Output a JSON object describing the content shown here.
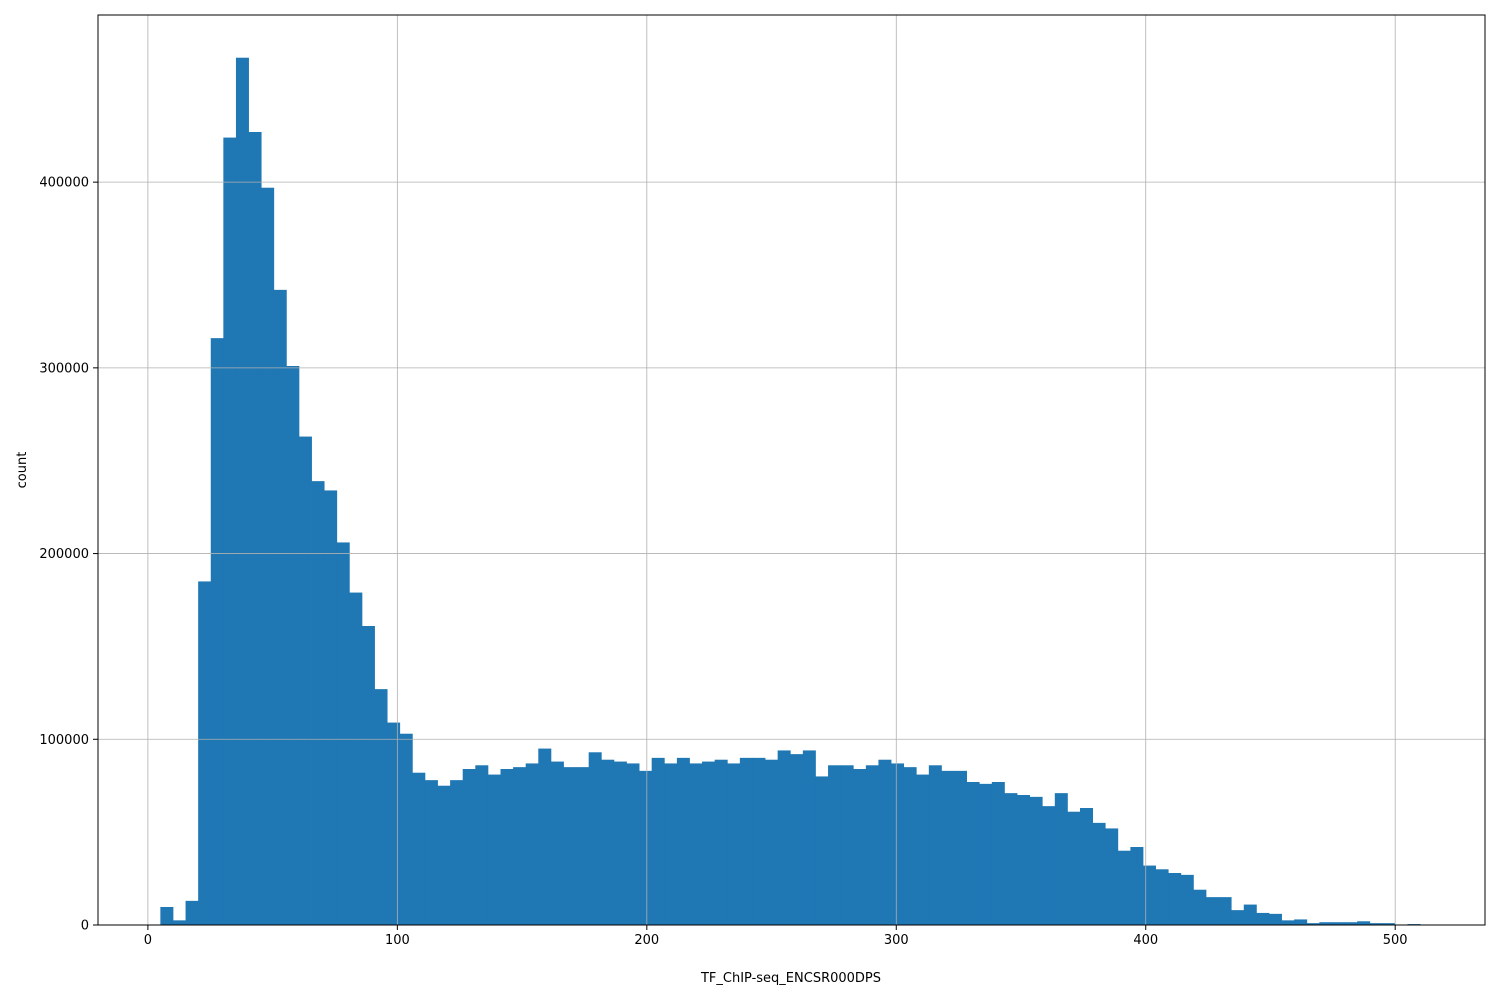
{
  "chart_data": {
    "type": "bar",
    "subtype": "histogram",
    "title": "",
    "xlabel": "TF_ChIP-seq_ENCSR000DPS",
    "ylabel": "count",
    "xlim": [
      -20,
      536
    ],
    "ylim": [
      0,
      490000
    ],
    "xticks": [
      0,
      100,
      200,
      300,
      400,
      500
    ],
    "yticks": [
      0,
      100000,
      200000,
      300000,
      400000
    ],
    "grid": true,
    "legend": "none",
    "bar_color": "#1f77b4",
    "bin_start": 5,
    "bin_width": 5.05,
    "counts": [
      9700,
      2500,
      13000,
      185000,
      316000,
      424000,
      467000,
      427000,
      397000,
      342000,
      301000,
      263000,
      239000,
      234000,
      206000,
      179000,
      161000,
      127000,
      109000,
      103000,
      82000,
      78000,
      75000,
      78000,
      84000,
      86000,
      81000,
      84000,
      85000,
      87000,
      95000,
      88000,
      85000,
      85000,
      93000,
      89000,
      88000,
      87000,
      83000,
      90000,
      87000,
      90000,
      87000,
      88000,
      89000,
      87000,
      90000,
      90000,
      89000,
      94000,
      92000,
      94000,
      80000,
      86000,
      86000,
      84000,
      86000,
      89000,
      87000,
      85000,
      81000,
      86000,
      83000,
      83000,
      77000,
      76000,
      77000,
      71000,
      70000,
      69000,
      64000,
      71000,
      61000,
      63000,
      55000,
      52000,
      40000,
      42000,
      32000,
      30000,
      28000,
      27000,
      19000,
      15000,
      15000,
      8000,
      11000,
      6500,
      6000,
      2500,
      3000,
      1000,
      1500,
      1500,
      1500,
      2000,
      1000,
      1000,
      0,
      500
    ]
  }
}
